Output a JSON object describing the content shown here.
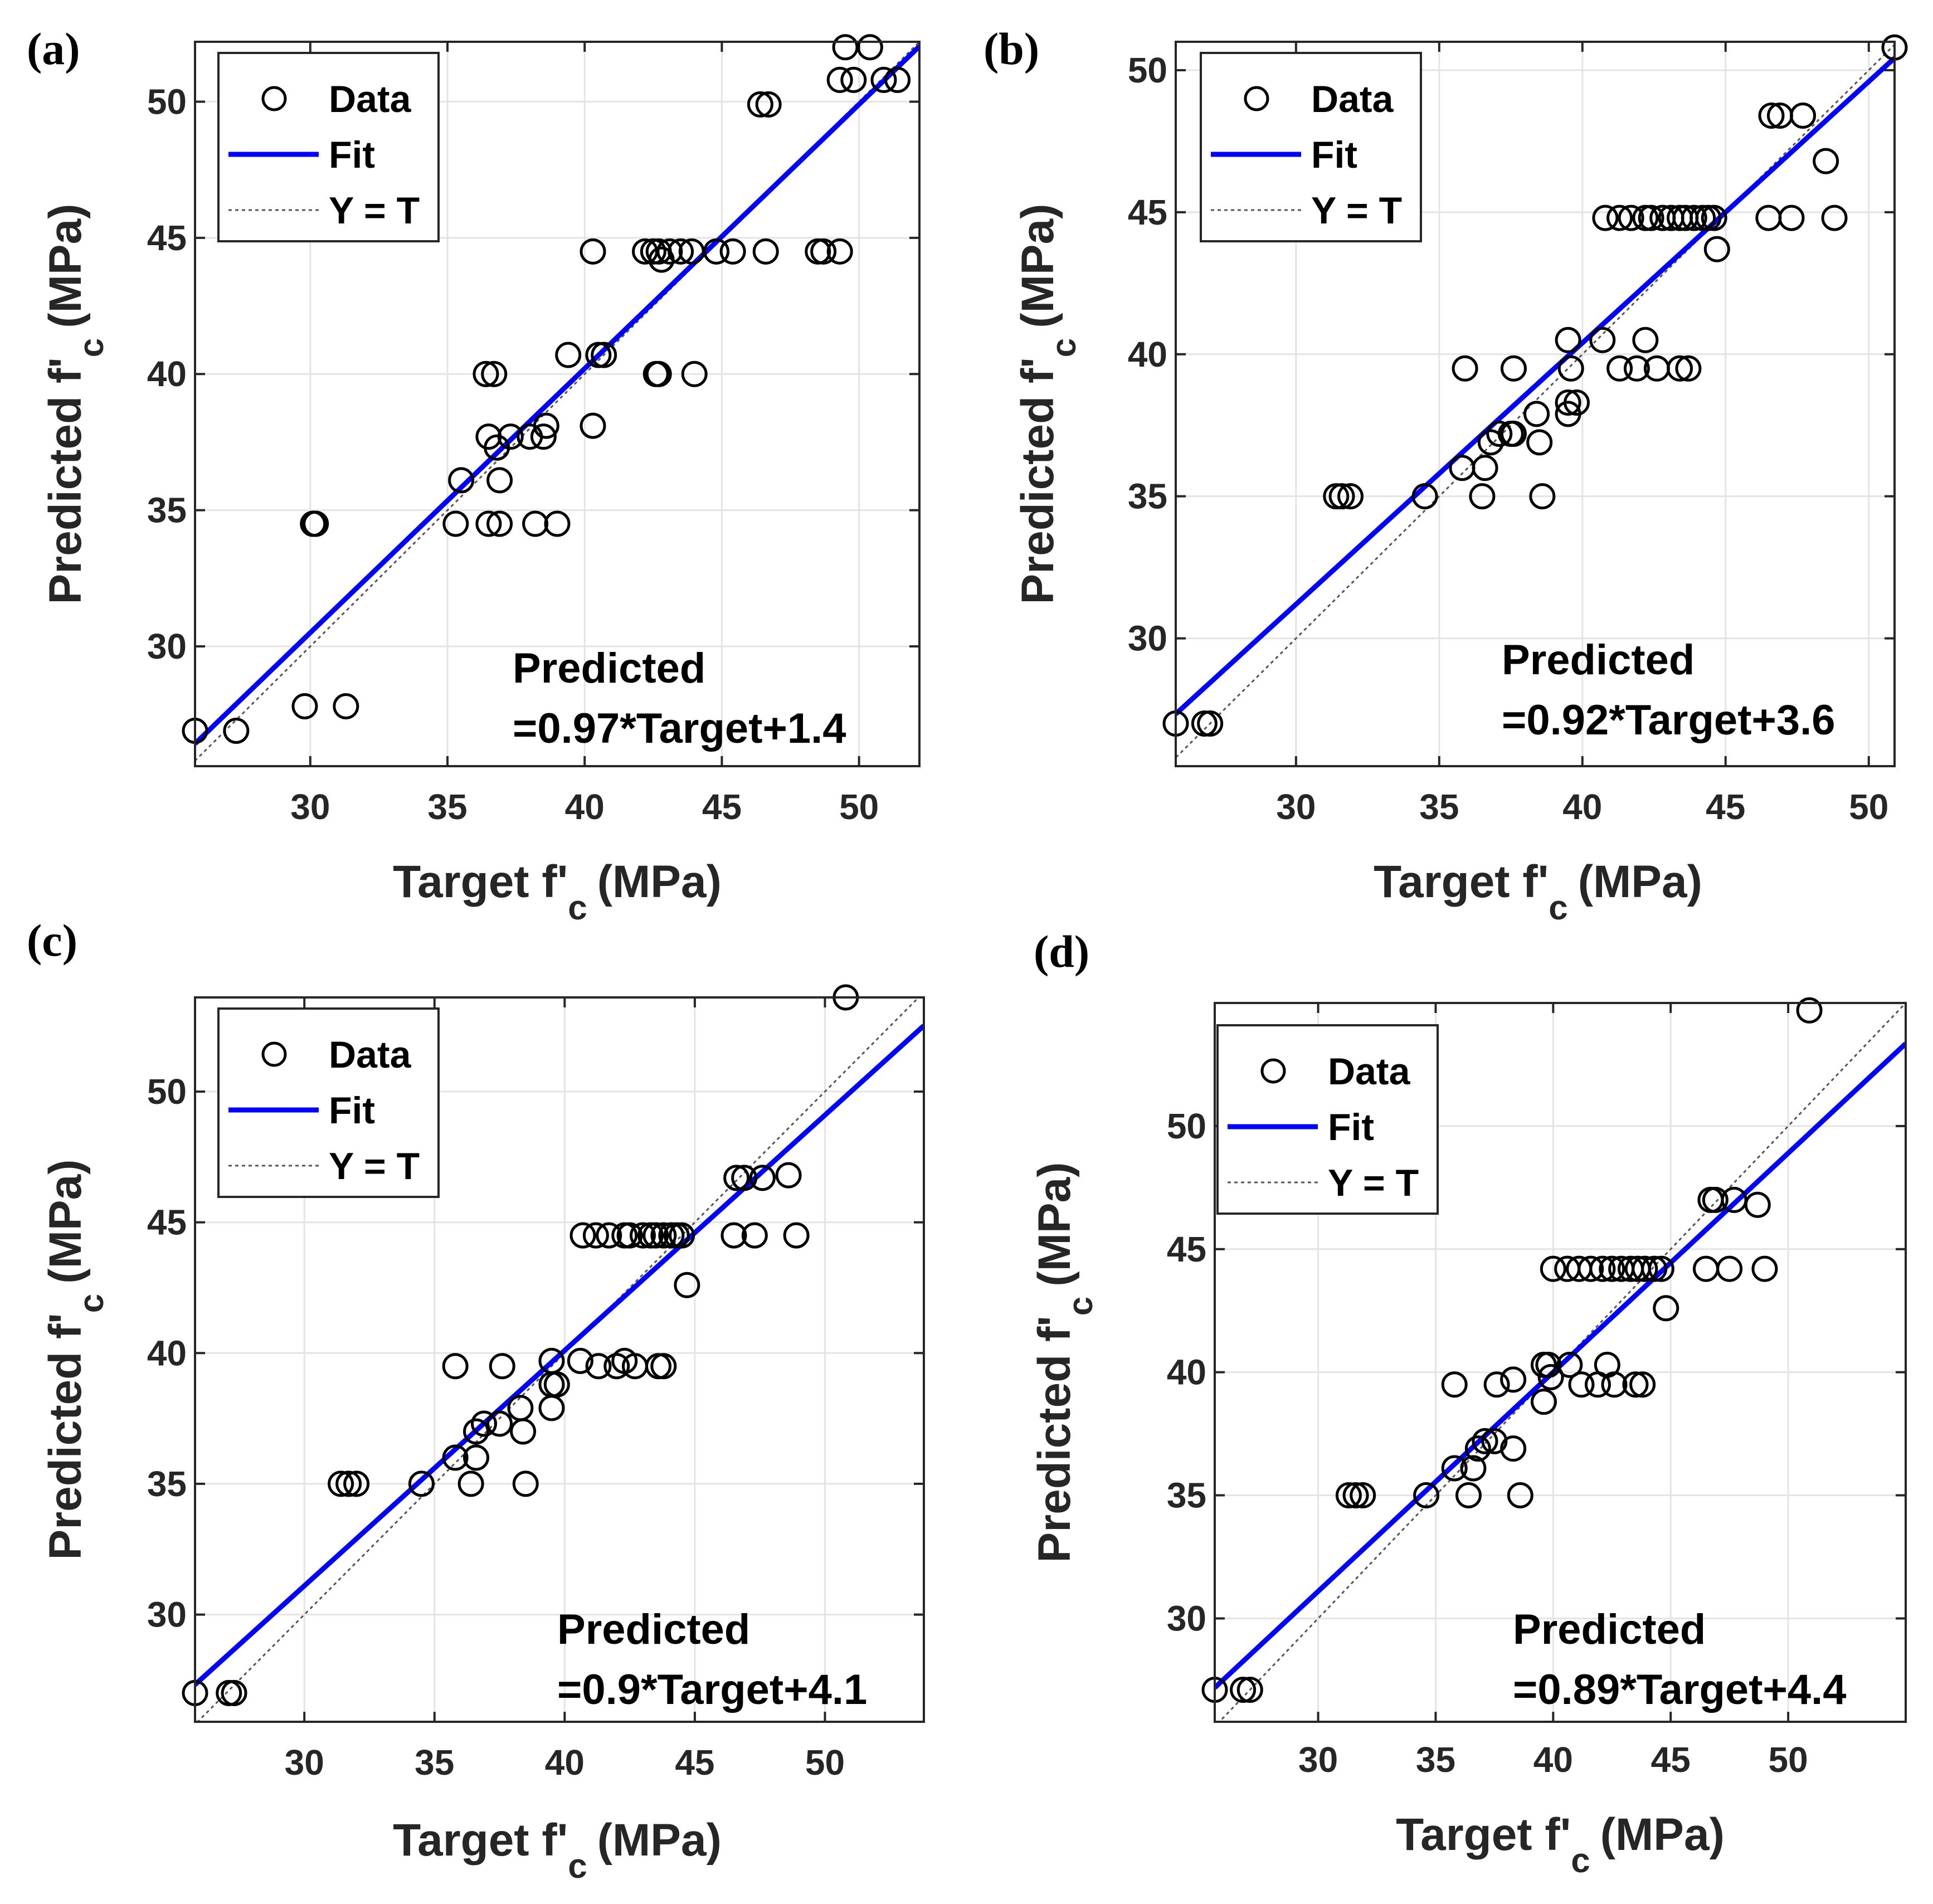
{
  "chart_data": [
    {
      "panel": "(a)",
      "type": "scatter",
      "xlim": [
        25.8,
        52.2
      ],
      "ylim": [
        25.6,
        52.2
      ],
      "xticks": [
        30,
        35,
        40,
        45,
        50
      ],
      "yticks": [
        30,
        35,
        40,
        45,
        50
      ],
      "xlabel": {
        "main": "Target f'",
        "sub": "c",
        "unit": "(MPa)"
      },
      "ylabel": {
        "main": "Predicted f'",
        "sub": "c",
        "unit": "(MPa)"
      },
      "legend": [
        "Data",
        "Fit",
        "Y = T"
      ],
      "legend_position": "top-left",
      "grid": true,
      "fit": {
        "slope": 0.97,
        "intercept": 1.4
      },
      "annotation": [
        "Predicted",
        "=0.97*Target+1.4"
      ],
      "points": [
        [
          25.8,
          26.9
        ],
        [
          27.3,
          26.9
        ],
        [
          29.8,
          27.8
        ],
        [
          31.3,
          27.8
        ],
        [
          30.1,
          34.5
        ],
        [
          30.2,
          34.5
        ],
        [
          35.3,
          34.5
        ],
        [
          36.5,
          34.5
        ],
        [
          36.9,
          34.5
        ],
        [
          38.2,
          34.5
        ],
        [
          39.0,
          34.5
        ],
        [
          35.5,
          36.1
        ],
        [
          36.9,
          36.1
        ],
        [
          36.5,
          37.7
        ],
        [
          37.3,
          37.7
        ],
        [
          38.0,
          37.7
        ],
        [
          38.5,
          37.7
        ],
        [
          36.8,
          37.3
        ],
        [
          38.6,
          38.1
        ],
        [
          40.3,
          38.1
        ],
        [
          36.4,
          40.0
        ],
        [
          36.7,
          40.0
        ],
        [
          39.4,
          40.7
        ],
        [
          40.5,
          40.7
        ],
        [
          40.7,
          40.7
        ],
        [
          42.6,
          40.0
        ],
        [
          42.7,
          40.0
        ],
        [
          44.0,
          40.0
        ],
        [
          40.3,
          44.5
        ],
        [
          42.2,
          44.5
        ],
        [
          42.5,
          44.5
        ],
        [
          42.7,
          44.5
        ],
        [
          43.1,
          44.5
        ],
        [
          43.5,
          44.5
        ],
        [
          43.9,
          44.5
        ],
        [
          44.8,
          44.5
        ],
        [
          45.4,
          44.5
        ],
        [
          46.6,
          44.5
        ],
        [
          48.5,
          44.5
        ],
        [
          48.7,
          44.5
        ],
        [
          49.3,
          44.5
        ],
        [
          42.8,
          44.2
        ],
        [
          46.4,
          49.9
        ],
        [
          46.7,
          49.9
        ],
        [
          49.3,
          50.8
        ],
        [
          49.8,
          50.8
        ],
        [
          50.9,
          50.8
        ],
        [
          51.4,
          50.8
        ],
        [
          49.5,
          52.0
        ],
        [
          50.4,
          52.0
        ]
      ]
    },
    {
      "panel": "(b)",
      "type": "scatter",
      "xlim": [
        25.8,
        50.9
      ],
      "ylim": [
        25.5,
        51.0
      ],
      "xticks": [
        30,
        35,
        40,
        45,
        50
      ],
      "yticks": [
        30,
        35,
        40,
        45,
        50
      ],
      "xlabel": {
        "main": "Target f'",
        "sub": "c",
        "unit": "(MPa)"
      },
      "ylabel": {
        "main": "Predicted f'",
        "sub": "c",
        "unit": "(MPa)"
      },
      "legend": [
        "Data",
        "Fit",
        "Y = T"
      ],
      "legend_position": "top-left",
      "grid": true,
      "fit": {
        "slope": 0.92,
        "intercept": 3.6
      },
      "annotation": [
        "Predicted",
        "=0.92*Target+3.6"
      ],
      "points": [
        [
          25.8,
          27.0
        ],
        [
          26.8,
          27.0
        ],
        [
          27.0,
          27.0
        ],
        [
          31.4,
          35.0
        ],
        [
          31.6,
          35.0
        ],
        [
          31.9,
          35.0
        ],
        [
          34.5,
          35.0
        ],
        [
          36.5,
          35.0
        ],
        [
          38.6,
          35.0
        ],
        [
          35.8,
          36.0
        ],
        [
          36.6,
          36.0
        ],
        [
          36.8,
          36.9
        ],
        [
          37.1,
          37.2
        ],
        [
          37.5,
          37.2
        ],
        [
          37.6,
          37.2
        ],
        [
          38.4,
          37.9
        ],
        [
          38.5,
          36.9
        ],
        [
          39.5,
          37.9
        ],
        [
          39.5,
          38.3
        ],
        [
          39.8,
          38.3
        ],
        [
          35.9,
          39.5
        ],
        [
          37.6,
          39.5
        ],
        [
          39.5,
          40.5
        ],
        [
          39.6,
          39.5
        ],
        [
          40.7,
          40.5
        ],
        [
          41.3,
          39.5
        ],
        [
          41.9,
          39.5
        ],
        [
          42.2,
          40.5
        ],
        [
          42.6,
          39.5
        ],
        [
          43.4,
          39.5
        ],
        [
          43.7,
          39.5
        ],
        [
          40.8,
          44.8
        ],
        [
          41.3,
          44.8
        ],
        [
          41.7,
          44.8
        ],
        [
          42.2,
          44.8
        ],
        [
          42.4,
          44.8
        ],
        [
          42.8,
          44.8
        ],
        [
          43.1,
          44.8
        ],
        [
          43.4,
          44.8
        ],
        [
          43.6,
          44.8
        ],
        [
          43.9,
          44.8
        ],
        [
          44.2,
          44.8
        ],
        [
          44.4,
          44.8
        ],
        [
          44.6,
          44.8
        ],
        [
          44.7,
          43.7
        ],
        [
          46.5,
          44.8
        ],
        [
          47.3,
          44.8
        ],
        [
          48.8,
          44.8
        ],
        [
          48.5,
          46.8
        ],
        [
          46.6,
          48.4
        ],
        [
          46.9,
          48.4
        ],
        [
          47.7,
          48.4
        ],
        [
          50.9,
          50.8
        ]
      ]
    },
    {
      "panel": "(c)",
      "type": "scatter",
      "xlim": [
        25.8,
        53.8
      ],
      "ylim": [
        25.9,
        53.6
      ],
      "xticks": [
        30,
        35,
        40,
        45,
        50
      ],
      "yticks": [
        30,
        35,
        40,
        45,
        50
      ],
      "xlabel": {
        "main": "Target f'",
        "sub": "c",
        "unit": "(MPa)"
      },
      "ylabel": {
        "main": "Predicted f'",
        "sub": "c",
        "unit": "(MPa)"
      },
      "legend": [
        "Data",
        "Fit",
        "Y = T"
      ],
      "legend_position": "top-left",
      "grid": true,
      "fit": {
        "slope": 0.9,
        "intercept": 4.1
      },
      "annotation": [
        "Predicted",
        "=0.9*Target+4.1"
      ],
      "points": [
        [
          25.8,
          27.0
        ],
        [
          27.1,
          27.0
        ],
        [
          27.3,
          27.0
        ],
        [
          31.4,
          35.0
        ],
        [
          31.7,
          35.0
        ],
        [
          32.0,
          35.0
        ],
        [
          34.5,
          35.0
        ],
        [
          36.4,
          35.0
        ],
        [
          38.5,
          35.0
        ],
        [
          35.8,
          36.0
        ],
        [
          36.6,
          36.0
        ],
        [
          36.6,
          37.0
        ],
        [
          36.9,
          37.3
        ],
        [
          37.5,
          37.3
        ],
        [
          38.4,
          37.0
        ],
        [
          38.3,
          37.9
        ],
        [
          39.5,
          37.9
        ],
        [
          39.5,
          38.8
        ],
        [
          39.7,
          38.8
        ],
        [
          35.8,
          39.5
        ],
        [
          37.6,
          39.5
        ],
        [
          39.5,
          39.7
        ],
        [
          40.6,
          39.7
        ],
        [
          41.3,
          39.5
        ],
        [
          42.0,
          39.5
        ],
        [
          42.3,
          39.7
        ],
        [
          42.7,
          39.5
        ],
        [
          43.6,
          39.5
        ],
        [
          43.8,
          39.5
        ],
        [
          40.7,
          44.5
        ],
        [
          41.2,
          44.5
        ],
        [
          41.7,
          44.5
        ],
        [
          42.3,
          44.5
        ],
        [
          42.5,
          44.5
        ],
        [
          43.0,
          44.5
        ],
        [
          43.3,
          44.5
        ],
        [
          43.5,
          44.5
        ],
        [
          43.8,
          44.5
        ],
        [
          44.1,
          44.5
        ],
        [
          44.3,
          44.5
        ],
        [
          44.5,
          44.5
        ],
        [
          44.7,
          42.6
        ],
        [
          46.5,
          44.5
        ],
        [
          47.3,
          44.5
        ],
        [
          48.9,
          44.5
        ],
        [
          46.6,
          46.7
        ],
        [
          46.9,
          46.7
        ],
        [
          47.6,
          46.7
        ],
        [
          48.6,
          46.8
        ],
        [
          50.8,
          53.6
        ]
      ]
    },
    {
      "panel": "(d)",
      "type": "scatter",
      "xlim": [
        25.6,
        55.0
      ],
      "ylim": [
        25.8,
        55.0
      ],
      "xticks": [
        30,
        35,
        40,
        45,
        50
      ],
      "yticks": [
        30,
        35,
        40,
        45,
        50
      ],
      "xlabel": {
        "main": "Target f'",
        "sub": "c",
        "unit": "(MPa)"
      },
      "ylabel": {
        "main": "Predicted f'",
        "sub": "c",
        "unit": "(MPa)"
      },
      "legend": [
        "Data",
        "Fit",
        "Y = T"
      ],
      "legend_position": "top-left",
      "grid": true,
      "fit": {
        "slope": 0.89,
        "intercept": 4.4
      },
      "annotation": [
        "Predicted",
        "=0.89*Target+4.4"
      ],
      "points": [
        [
          25.6,
          27.1
        ],
        [
          26.8,
          27.1
        ],
        [
          27.1,
          27.1
        ],
        [
          31.3,
          35.0
        ],
        [
          31.6,
          35.0
        ],
        [
          31.9,
          35.0
        ],
        [
          34.6,
          35.0
        ],
        [
          36.4,
          35.0
        ],
        [
          38.6,
          35.0
        ],
        [
          35.8,
          36.1
        ],
        [
          36.6,
          36.1
        ],
        [
          36.8,
          36.9
        ],
        [
          37.1,
          37.2
        ],
        [
          37.5,
          37.2
        ],
        [
          38.3,
          36.9
        ],
        [
          39.6,
          38.8
        ],
        [
          39.6,
          40.3
        ],
        [
          39.8,
          40.3
        ],
        [
          39.9,
          39.8
        ],
        [
          35.8,
          39.5
        ],
        [
          37.6,
          39.5
        ],
        [
          38.3,
          39.7
        ],
        [
          40.7,
          40.3
        ],
        [
          41.2,
          39.5
        ],
        [
          41.9,
          39.5
        ],
        [
          42.3,
          40.3
        ],
        [
          42.6,
          39.5
        ],
        [
          43.5,
          39.5
        ],
        [
          43.8,
          39.5
        ],
        [
          40.0,
          44.2
        ],
        [
          40.6,
          44.2
        ],
        [
          41.1,
          44.2
        ],
        [
          41.6,
          44.2
        ],
        [
          42.1,
          44.2
        ],
        [
          42.5,
          44.2
        ],
        [
          42.9,
          44.2
        ],
        [
          43.3,
          44.2
        ],
        [
          43.6,
          44.2
        ],
        [
          43.9,
          44.2
        ],
        [
          44.3,
          44.2
        ],
        [
          44.6,
          44.2
        ],
        [
          44.8,
          42.6
        ],
        [
          46.5,
          44.2
        ],
        [
          47.5,
          44.2
        ],
        [
          49.0,
          44.2
        ],
        [
          46.7,
          47.0
        ],
        [
          46.9,
          47.0
        ],
        [
          47.7,
          47.0
        ],
        [
          48.7,
          46.8
        ],
        [
          50.9,
          54.7
        ]
      ]
    }
  ]
}
